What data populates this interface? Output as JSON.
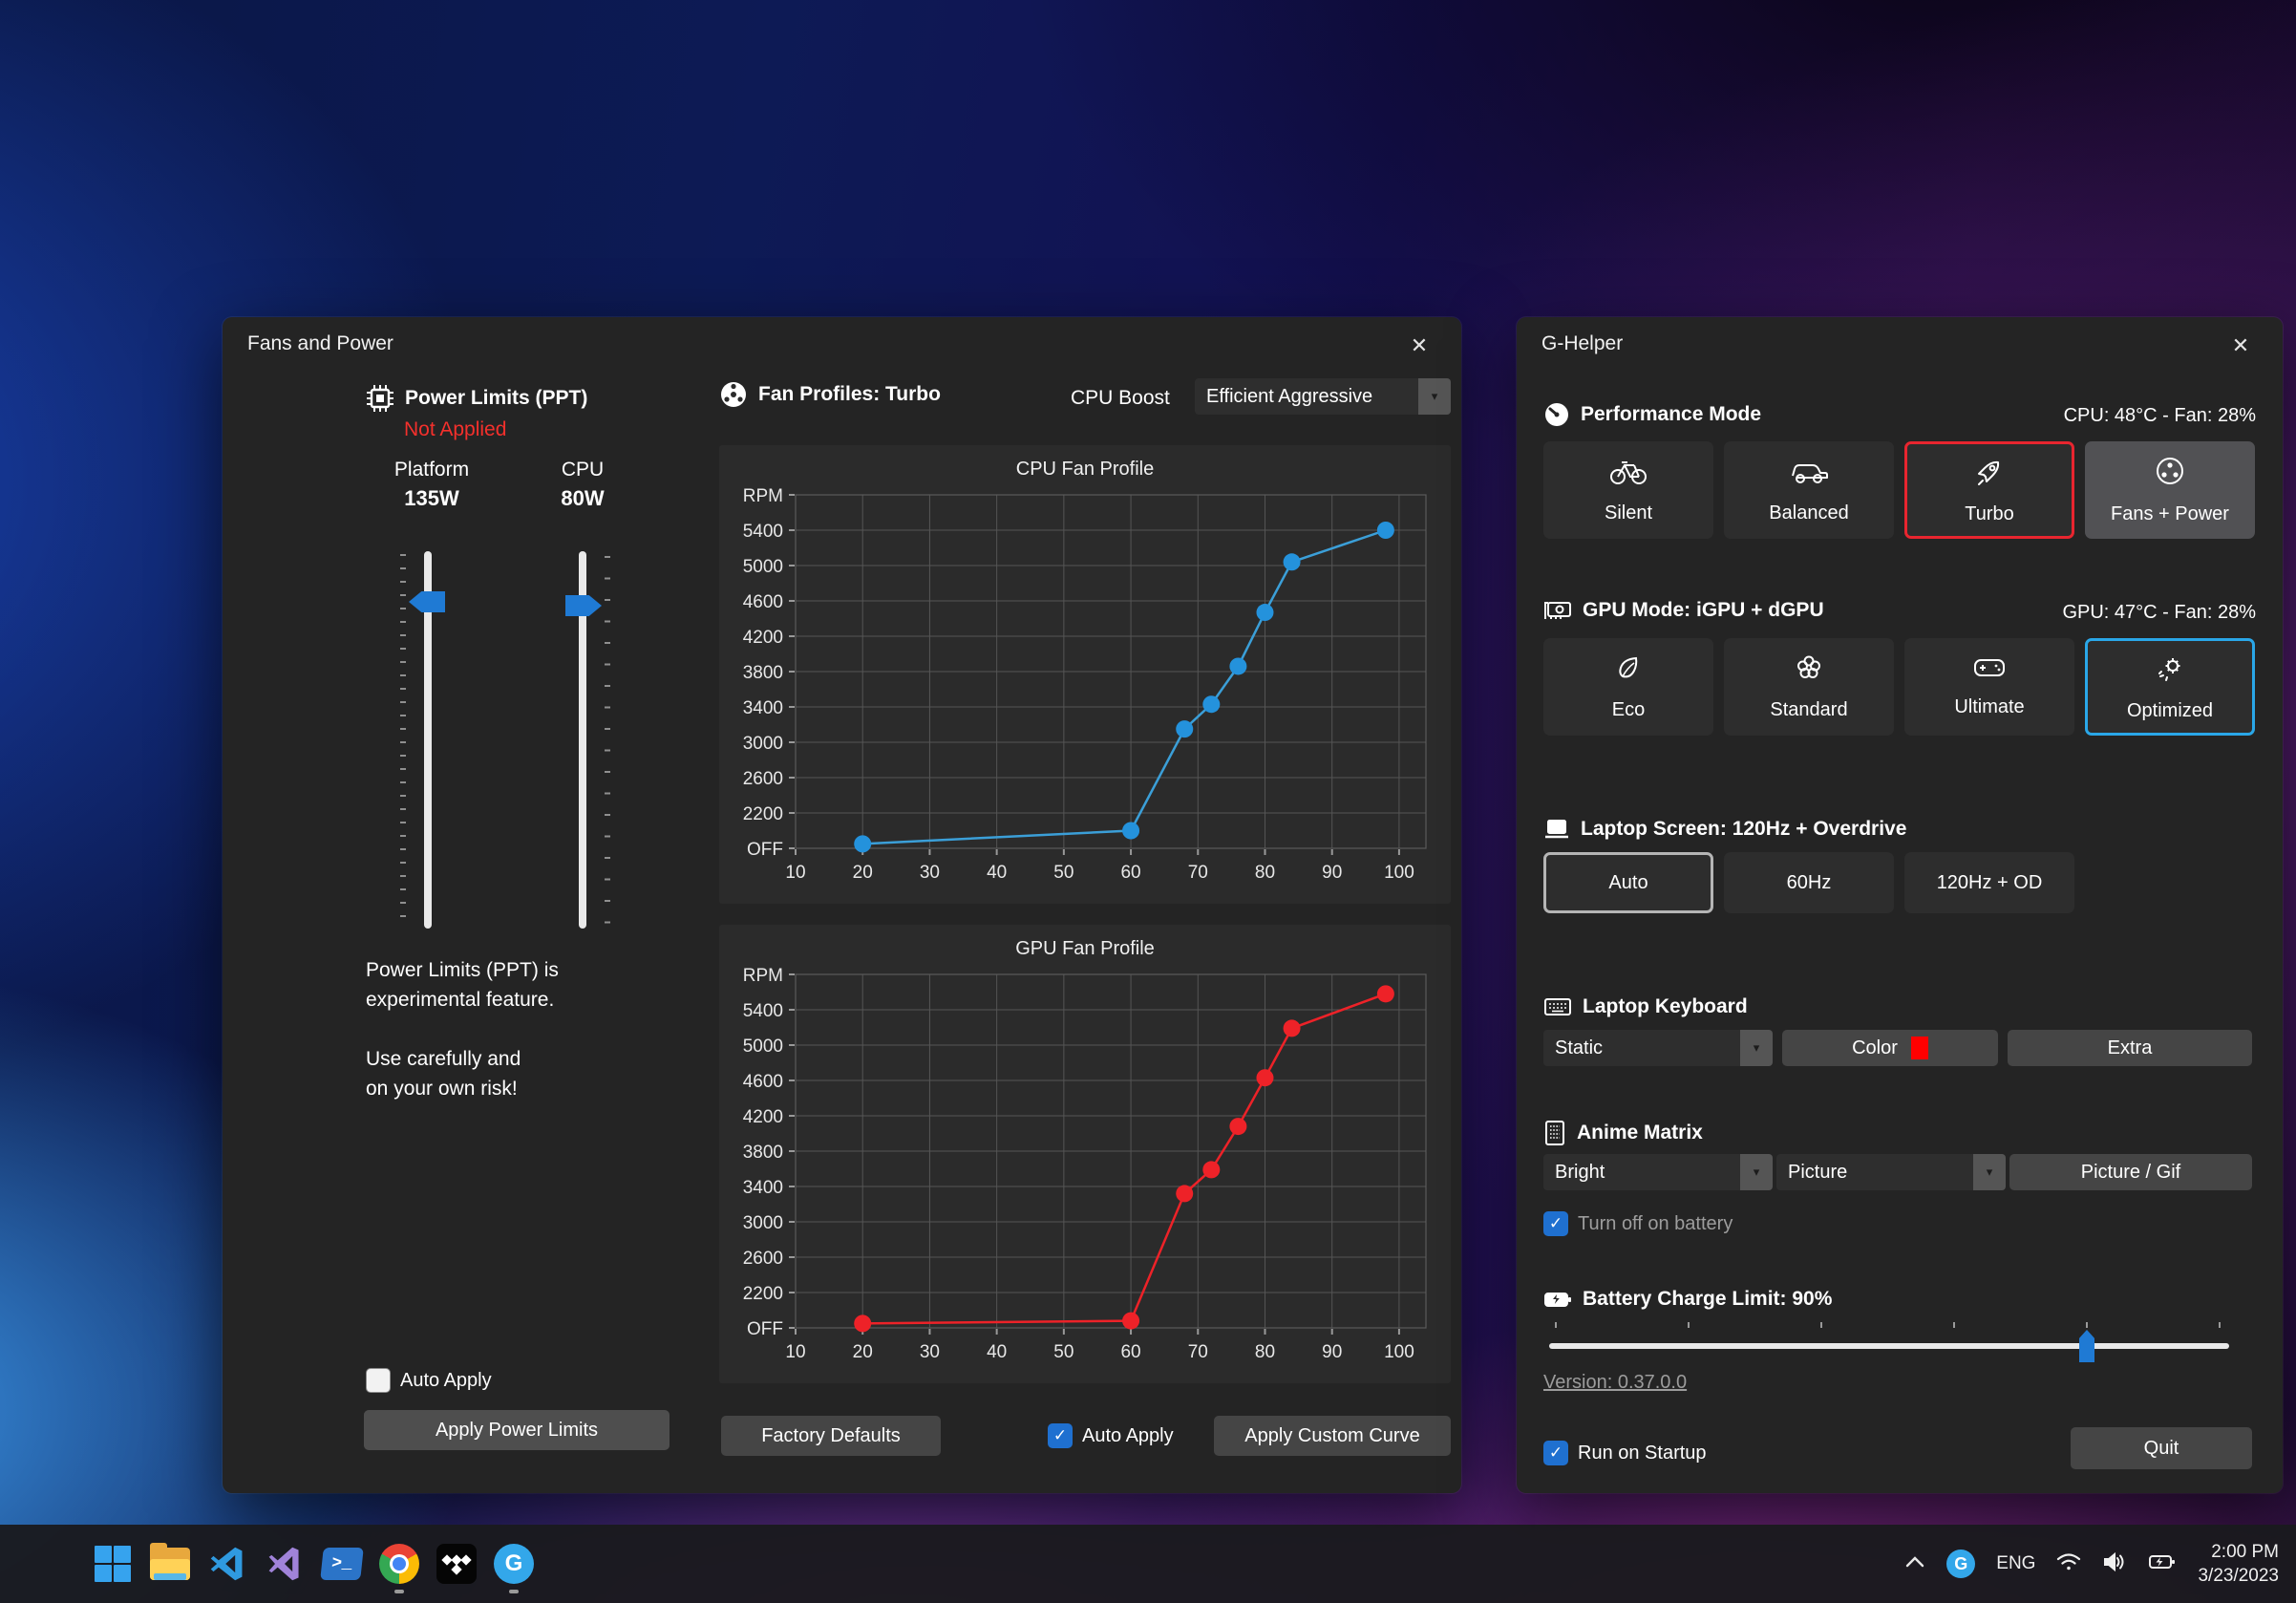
{
  "window_controls": {
    "close_glyph": "✕"
  },
  "colors": {
    "selected_red": "#e8252f",
    "selected_blue": "#2aa7e8",
    "checkbox_blue": "#1f70d0",
    "cpu_line": "#3b9fd8",
    "cpu_point": "#2492dc",
    "gpu_line": "#ed2228",
    "gpu_point": "#ee2228",
    "keyboard_swatch": "#ff0000"
  },
  "fans_window": {
    "title": "Fans and Power",
    "power_limits": {
      "icon": "chip-icon",
      "heading": "Power Limits (PPT)",
      "status": "Not Applied",
      "platform_label": "Platform",
      "platform_value": "135W",
      "cpu_label": "CPU",
      "cpu_value": "80W",
      "note_line1": "Power Limits (PPT) is",
      "note_line2": "experimental feature.",
      "note_line3": "Use carefully and",
      "note_line4": "on your own risk!",
      "auto_apply_label": "Auto Apply",
      "auto_apply_checked": false,
      "apply_button": "Apply Power Limits"
    },
    "fan_profiles": {
      "icon": "fan-icon",
      "heading": "Fan Profiles: Turbo",
      "cpu_boost_label": "CPU Boost",
      "cpu_boost_value": "Efficient Aggressive",
      "factory_defaults_button": "Factory Defaults",
      "auto_apply_label": "Auto Apply",
      "auto_apply_checked": true,
      "apply_custom_button": "Apply Custom Curve"
    }
  },
  "ghelper_window": {
    "title": "G-Helper",
    "performance": {
      "icon": "gauge-icon",
      "heading": "Performance Mode",
      "status": "CPU: 48°C -  Fan: 28%",
      "modes": [
        {
          "label": "Silent",
          "icon": "bicycle-icon",
          "selected": false
        },
        {
          "label": "Balanced",
          "icon": "car-icon",
          "selected": false
        },
        {
          "label": "Turbo",
          "icon": "rocket-icon",
          "selected": true
        },
        {
          "label": "Fans + Power",
          "icon": "fan-icon",
          "selected": false,
          "active_window": true
        }
      ]
    },
    "gpu": {
      "icon": "gpu-card-icon",
      "heading": "GPU Mode: iGPU + dGPU",
      "status": "GPU: 47°C -  Fan: 28%",
      "modes": [
        {
          "label": "Eco",
          "icon": "leaf-icon",
          "selected": false
        },
        {
          "label": "Standard",
          "icon": "flower-icon",
          "selected": false
        },
        {
          "label": "Ultimate",
          "icon": "gamepad-icon",
          "selected": false
        },
        {
          "label": "Optimized",
          "icon": "gear-spark-icon",
          "selected": true
        }
      ]
    },
    "screen": {
      "icon": "laptop-icon",
      "heading": "Laptop Screen: 120Hz + Overdrive",
      "options": [
        {
          "label": "Auto",
          "selected": true
        },
        {
          "label": "60Hz",
          "selected": false
        },
        {
          "label": "120Hz + OD",
          "selected": false
        }
      ]
    },
    "keyboard": {
      "icon": "keyboard-icon",
      "heading": "Laptop Keyboard",
      "mode_value": "Static",
      "color_button": "Color",
      "extra_button": "Extra"
    },
    "matrix": {
      "icon": "matrix-icon",
      "heading": "Anime Matrix",
      "brightness_value": "Bright",
      "running_value": "Picture",
      "picture_button": "Picture / Gif",
      "battery_checkbox_label": "Turn off on battery",
      "battery_checkbox_checked": true
    },
    "battery": {
      "icon": "battery-icon",
      "heading": "Battery Charge Limit: 90%",
      "slider_percent": 79
    },
    "version_link": "Version: 0.37.0.0",
    "run_on_startup_label": "Run on Startup",
    "run_on_startup_checked": true,
    "quit_button": "Quit"
  },
  "taskbar": {
    "apps": [
      {
        "name": "start"
      },
      {
        "name": "file-explorer"
      },
      {
        "name": "vscode"
      },
      {
        "name": "visual-studio"
      },
      {
        "name": "powershell",
        "glyph": ">_"
      },
      {
        "name": "chrome",
        "running": true
      },
      {
        "name": "tidal"
      },
      {
        "name": "g-helper",
        "glyph": "G",
        "running": true
      }
    ],
    "tray": {
      "language": "ENG",
      "time": "2:00 PM",
      "date": "3/23/2023",
      "ghelper_glyph": "G"
    }
  },
  "chart_data": [
    {
      "type": "line",
      "title": "CPU Fan Profile",
      "x": [
        20,
        60,
        68,
        72,
        76,
        80,
        84,
        98
      ],
      "y": [
        1850,
        2000,
        3150,
        3430,
        3860,
        4470,
        5040,
        5400
      ],
      "x_ticks": [
        10,
        20,
        30,
        40,
        50,
        60,
        70,
        80,
        90,
        100
      ],
      "y_tick_labels": [
        "OFF",
        "2200",
        "2600",
        "3000",
        "3400",
        "3800",
        "4200",
        "4600",
        "5000",
        "5400",
        "RPM"
      ],
      "y_off_value": 1800,
      "xlim": [
        10,
        104
      ],
      "grid": true,
      "line_color": "#3b9fd8",
      "point_color": "#2492dc"
    },
    {
      "type": "line",
      "title": "GPU Fan Profile",
      "x": [
        20,
        60,
        68,
        72,
        76,
        80,
        84,
        98
      ],
      "y": [
        1850,
        1880,
        3320,
        3590,
        4080,
        4630,
        5190,
        5580
      ],
      "x_ticks": [
        10,
        20,
        30,
        40,
        50,
        60,
        70,
        80,
        90,
        100
      ],
      "y_tick_labels": [
        "OFF",
        "2200",
        "2600",
        "3000",
        "3400",
        "3800",
        "4200",
        "4600",
        "5000",
        "5400",
        "RPM"
      ],
      "y_off_value": 1800,
      "xlim": [
        10,
        104
      ],
      "grid": true,
      "line_color": "#ed2228",
      "point_color": "#ee2228"
    }
  ]
}
